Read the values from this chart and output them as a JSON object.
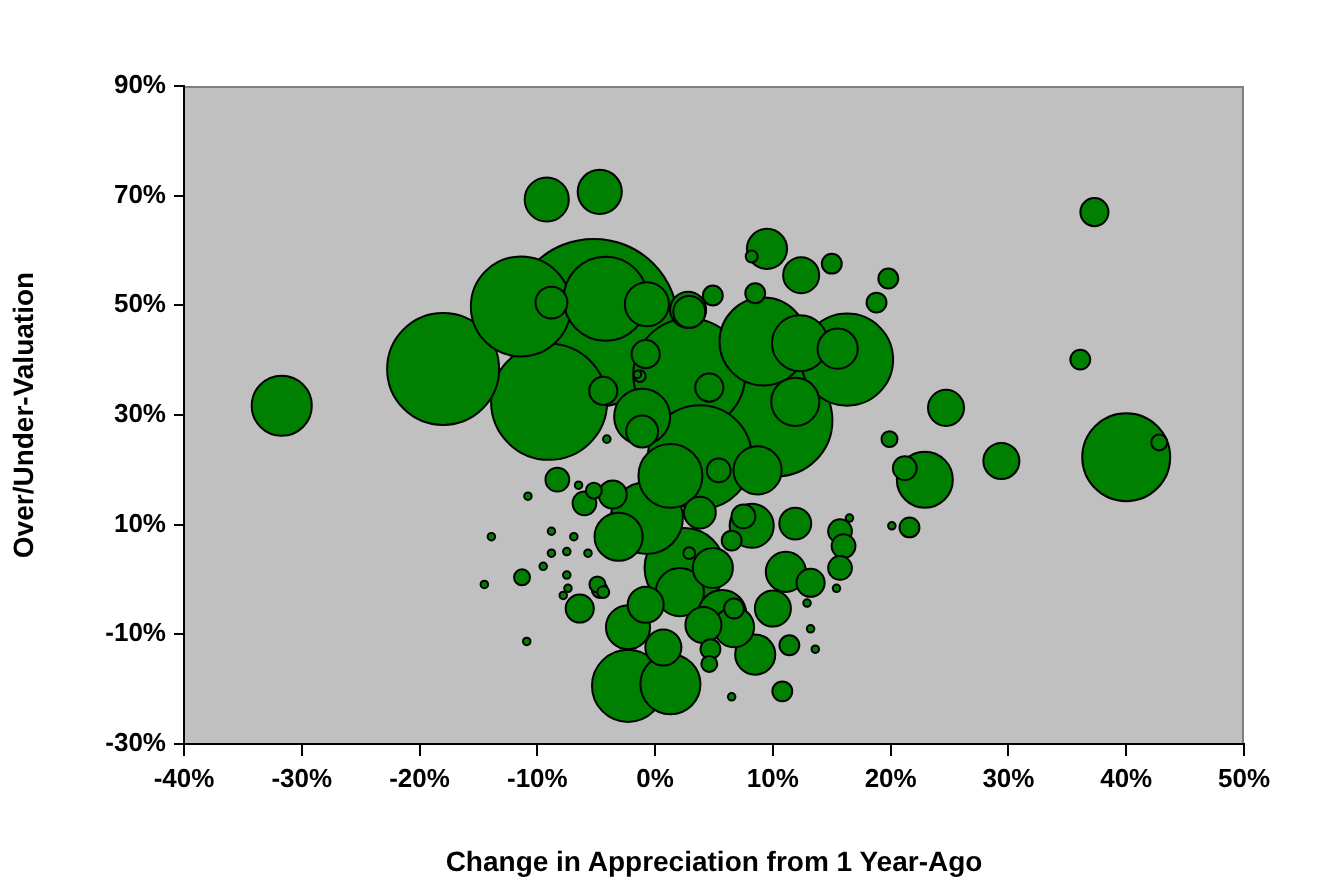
{
  "chart_data": {
    "type": "bubble",
    "xlabel": "Change in Appreciation from 1 Year-Ago",
    "ylabel": "Over/Under-Valuation",
    "xlim": [
      -40,
      50
    ],
    "xticks": [
      {
        "value": -40,
        "label": "-40%"
      },
      {
        "value": -30,
        "label": "-30%"
      },
      {
        "value": -20,
        "label": "-20%"
      },
      {
        "value": -10,
        "label": "-10%"
      },
      {
        "value": 0,
        "label": "0%"
      },
      {
        "value": 10,
        "label": "10%"
      },
      {
        "value": 20,
        "label": "20%"
      },
      {
        "value": 30,
        "label": "30%"
      },
      {
        "value": 40,
        "label": "40%"
      },
      {
        "value": 50,
        "label": "50%"
      }
    ],
    "ylim": [
      -30,
      90
    ],
    "yticks": [
      {
        "value": -30,
        "label": "-30%"
      },
      {
        "value": -10,
        "label": "-10%"
      },
      {
        "value": 10,
        "label": "10%"
      },
      {
        "value": 30,
        "label": "30%"
      },
      {
        "value": 50,
        "label": "50%"
      },
      {
        "value": 70,
        "label": "70%"
      },
      {
        "value": 90,
        "label": "90%"
      }
    ],
    "grid": false,
    "legend": false,
    "series": [
      {
        "color": "#008000",
        "x": [
          -5.2,
          -9.0,
          -18.0,
          10.3,
          2.9,
          3.8,
          -11.4,
          16.3,
          40.0,
          9.2,
          -4.2,
          2.5,
          -2.3,
          -0.7,
          1.3,
          -31.7,
          1.3,
          12.3,
          -1.1,
          22.9,
          2.1,
          8.7,
          11.9,
          -3.1,
          5.7,
          -9.2,
          -4.7,
          -0.7,
          -2.3,
          8.2,
          9.5,
          15.5,
          11.1,
          8.5,
          6.7,
          4.9,
          2.8,
          12.4,
          24.7,
          29.4,
          10.0,
          0.7,
          4.1,
          -0.8,
          -8.8,
          2.9,
          3.8,
          11.9,
          -1.1,
          37.3,
          4.6,
          -0.8,
          -4.4,
          13.2,
          -6.4,
          -3.6,
          21.2,
          15.7,
          16.0,
          15.7,
          5.4,
          -8.3,
          -6.0,
          7.5,
          4.9,
          8.5,
          15.0,
          19.8,
          18.8,
          36.1,
          21.6,
          11.4,
          10.8,
          6.7,
          4.7,
          6.5,
          19.9,
          42.8,
          4.6,
          -4.7,
          -5.2,
          -11.3,
          -4.9,
          8.2,
          -1.3,
          2.9,
          -4.4,
          -1.5,
          20.1,
          15.4,
          16.5,
          13.2,
          13.6,
          12.9,
          6.5,
          -6.5,
          -10.8,
          -13.9,
          -14.5,
          -10.9,
          -8.8,
          -8.8,
          -9.5,
          -7.5,
          -6.9,
          -5.7,
          -7.5,
          -7.4,
          -7.8,
          -4.1
        ],
        "values": [
          46.8,
          32.4,
          38.4,
          29.0,
          37.4,
          22.3,
          49.8,
          40.1,
          22.3,
          43.4,
          51.2,
          2.1,
          -19.4,
          11.2,
          18.9,
          31.7,
          -19.1,
          43.1,
          29.7,
          18.2,
          -2.3,
          19.9,
          32.4,
          7.8,
          -6.3,
          69.3,
          70.7,
          50.2,
          -8.7,
          9.8,
          60.3,
          42.1,
          1.4,
          -13.7,
          -8.7,
          2.1,
          49.2,
          55.5,
          31.3,
          21.6,
          -5.3,
          -12.4,
          -8.3,
          -4.6,
          50.5,
          48.8,
          12.2,
          10.2,
          27.0,
          67.0,
          35.0,
          41.1,
          34.4,
          -0.6,
          -5.3,
          15.5,
          20.3,
          8.8,
          6.1,
          2.1,
          19.9,
          18.2,
          13.9,
          11.5,
          51.8,
          52.2,
          57.6,
          54.9,
          50.5,
          40.1,
          9.5,
          -12.0,
          -20.4,
          -5.3,
          -12.7,
          7.1,
          25.6,
          25.0,
          -15.4,
          -1.9,
          16.2,
          0.4,
          -0.9,
          58.9,
          37.1,
          4.8,
          -2.3,
          37.4,
          9.8,
          -1.6,
          11.2,
          -9.0,
          -12.7,
          -4.3,
          -21.4,
          17.2,
          15.2,
          7.8,
          -0.9,
          -11.3,
          8.8,
          4.8,
          2.4,
          5.1,
          7.8,
          4.8,
          0.8,
          -1.6,
          -2.9,
          25.6
        ],
        "sizes": [
          1,
          0.477,
          0.444,
          0.444,
          0.444,
          0.383,
          0.354,
          0.3,
          0.274,
          0.274,
          0.25,
          0.227,
          0.184,
          0.184,
          0.145,
          0.128,
          0.128,
          0.111,
          0.111,
          0.111,
          0.082,
          0.082,
          0.082,
          0.082,
          0.082,
          0.069,
          0.069,
          0.069,
          0.069,
          0.069,
          0.057,
          0.057,
          0.057,
          0.057,
          0.057,
          0.057,
          0.046,
          0.046,
          0.046,
          0.046,
          0.046,
          0.046,
          0.046,
          0.046,
          0.036,
          0.036,
          0.036,
          0.036,
          0.036,
          0.028,
          0.028,
          0.028,
          0.028,
          0.028,
          0.028,
          0.028,
          0.02,
          0.02,
          0.02,
          0.02,
          0.02,
          0.02,
          0.02,
          0.02,
          0.014,
          0.014,
          0.014,
          0.014,
          0.014,
          0.014,
          0.014,
          0.014,
          0.014,
          0.014,
          0.014,
          0.014,
          0.009,
          0.009,
          0.009,
          0.009,
          0.009,
          0.009,
          0.009,
          0.005,
          0.005,
          0.005,
          0.005,
          0.002,
          0.002,
          0.002,
          0.002,
          0.002,
          0.002,
          0.002,
          0.002,
          0.002,
          0.002,
          0.002,
          0.002,
          0.002,
          0.002,
          0.002,
          0.002,
          0.002,
          0.002,
          0.002,
          0.002,
          0.002,
          0.002,
          0.002
        ]
      }
    ]
  }
}
